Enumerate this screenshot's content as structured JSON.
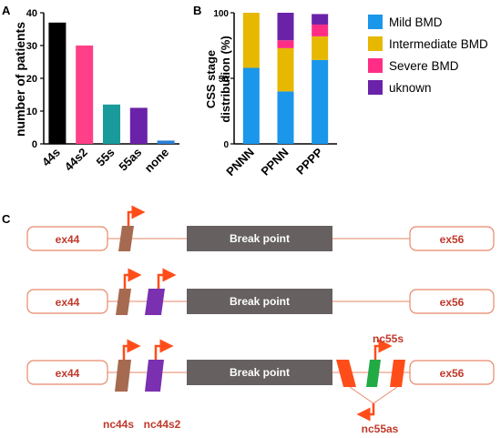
{
  "panel_a": {
    "letter": "A",
    "chart_data": {
      "type": "bar",
      "ylabel": "number of patients",
      "ylim": [
        0,
        40
      ],
      "yticks": [
        "0",
        "10",
        "20",
        "30",
        "40"
      ],
      "categories": [
        "44s",
        "44s2",
        "55s",
        "55as",
        "none"
      ],
      "values": [
        37,
        30,
        12,
        11,
        1
      ],
      "colors": [
        "#000000",
        "#ff3f87",
        "#1a9b9b",
        "#6a22a8",
        "#2b7fd6"
      ]
    }
  },
  "panel_b": {
    "letter": "B",
    "chart_data": {
      "type": "bar",
      "stacked": true,
      "ylabel": "CSS stage distribution (%)",
      "ylim": [
        0,
        100
      ],
      "yticks": [
        "0",
        "50",
        "100"
      ],
      "categories": [
        "PNNN",
        "PPNN",
        "PPPP"
      ],
      "series": [
        {
          "name": "Mild BMD",
          "color": "#1a96ea",
          "values": [
            58,
            40,
            64
          ]
        },
        {
          "name": "Intermediate BMD",
          "color": "#e6b800",
          "values": [
            42,
            33,
            18
          ]
        },
        {
          "name": "Severe BMD",
          "color": "#ff2d86",
          "values": [
            0,
            6,
            9
          ]
        },
        {
          "name": "uknown",
          "color": "#6a22a8",
          "values": [
            0,
            21,
            8
          ]
        }
      ],
      "legend_position": "right"
    }
  },
  "panel_c": {
    "letter": "C",
    "break_label": "Break point",
    "exon_left": "ex44",
    "exon_right": "ex56",
    "promoter_labels": {
      "nc44s": "nc44s",
      "nc44s2": "nc44s2",
      "nc55s": "nc55s",
      "nc55as": "nc55as"
    },
    "colors": {
      "exon_border": "#e8886a",
      "exon_text": "#c0392b",
      "line": "#e8886a",
      "break_fill": "#666060",
      "nc44s": "#a66a50",
      "nc44s2": "#7a30b0",
      "nc55": "#ff4d1a",
      "nc55s": "#22aa44",
      "arrow": "#ff4d1a",
      "label": "#c0392b"
    }
  }
}
